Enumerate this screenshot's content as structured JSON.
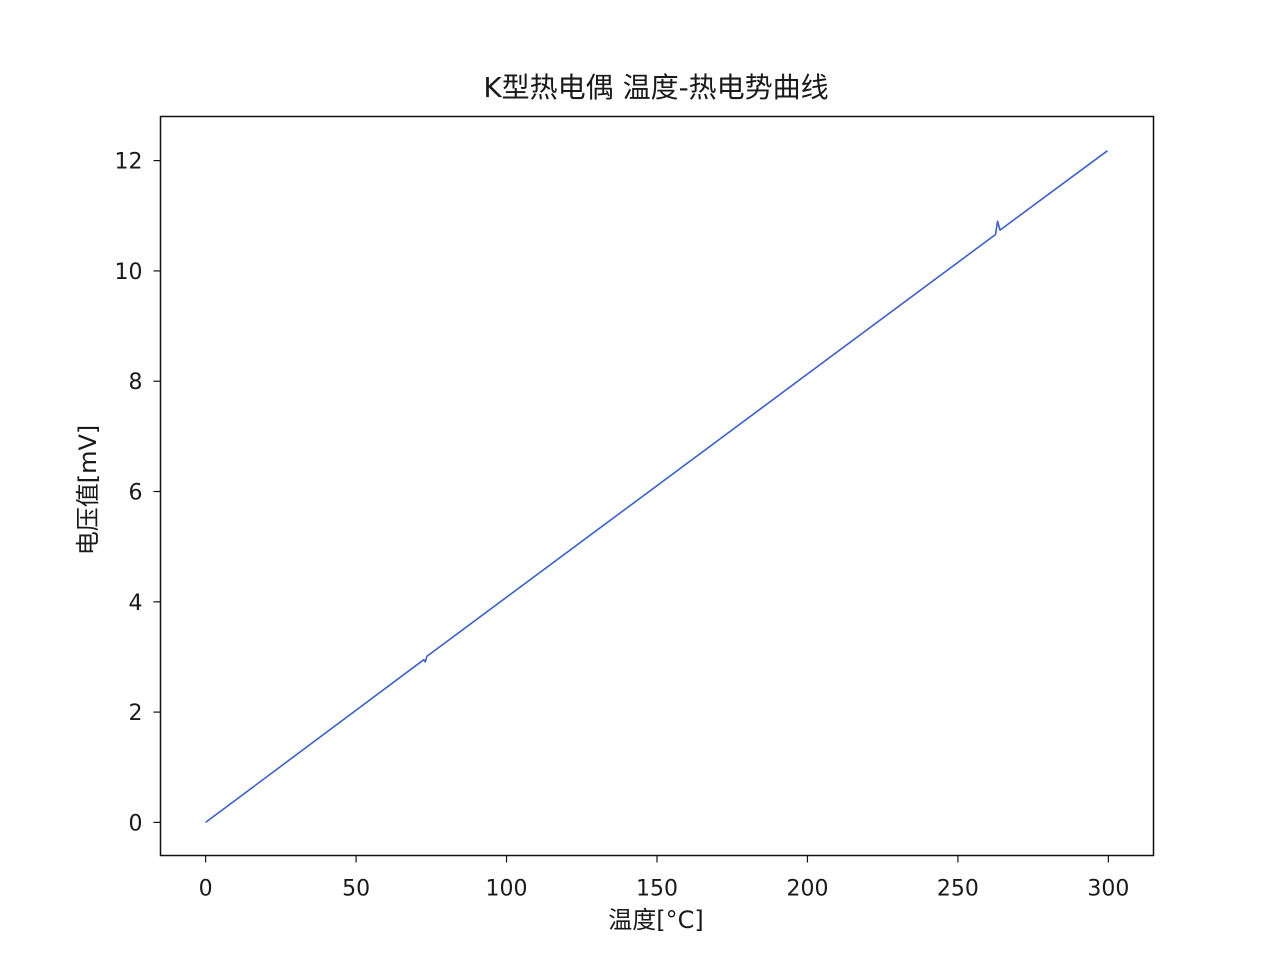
{
  "chart_data": {
    "type": "line",
    "title": "K型热电偶 温度-热电势曲线",
    "xlabel": "温度[°C]",
    "ylabel": "电压值[mV]",
    "xlim": [
      -15,
      315
    ],
    "ylim": [
      -0.6,
      12.8
    ],
    "xticks": [
      0,
      50,
      100,
      150,
      200,
      250,
      300
    ],
    "yticks": [
      0,
      2,
      4,
      6,
      8,
      10,
      12
    ],
    "grid": false,
    "line_color": "#3b5fd4",
    "series": [
      {
        "x": [
          0,
          72.5,
          73.0,
          73.5,
          262.5,
          263.2,
          264.0,
          299.7
        ],
        "y": [
          0,
          2.95,
          2.91,
          3.01,
          10.66,
          10.9,
          10.74,
          12.18
        ]
      }
    ]
  }
}
